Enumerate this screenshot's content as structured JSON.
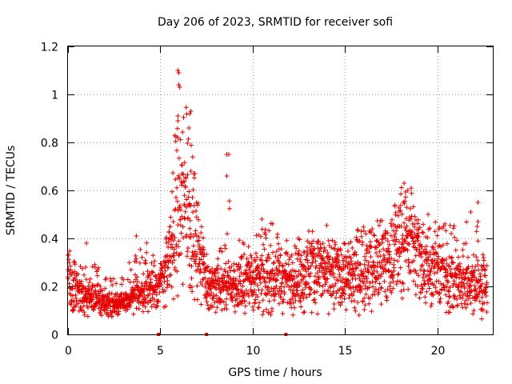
{
  "chart_data": {
    "type": "scatter",
    "title": "Day 206 of 2023, SRMTID for receiver sofi",
    "xlabel": "GPS time / hours",
    "ylabel": "SRMTID / TECUs",
    "xlim": [
      0,
      23.0
    ],
    "ylim": [
      0,
      1.2
    ],
    "x_ticks": [
      0,
      5,
      10,
      15,
      20
    ],
    "y_ticks": [
      0,
      0.2,
      0.4,
      0.6,
      0.8,
      1,
      1.2
    ],
    "x_tick_labels": [
      "0",
      "5",
      "10",
      "15",
      "20"
    ],
    "y_tick_labels": [
      "0",
      "0.2",
      "0.4",
      "0.6",
      "0.8",
      "1",
      "1.2"
    ],
    "grid": true,
    "marker": "+",
    "color": "#e60000",
    "gap_markers_x": [
      4.9,
      7.5,
      11.8
    ],
    "envelope": {
      "description": "approximate per-hour band (low, typical, high) in TECU",
      "hours": [
        0,
        1,
        2,
        3,
        4,
        5,
        5.5,
        6,
        6.5,
        7,
        7.5,
        8,
        8.5,
        9,
        10,
        11,
        12,
        13,
        14,
        15,
        16,
        17,
        17.5,
        18,
        18.5,
        19,
        20,
        21,
        22,
        22.7
      ],
      "low": [
        0.07,
        0.07,
        0.07,
        0.08,
        0.08,
        0.1,
        0.12,
        0.15,
        0.15,
        0.13,
        0.1,
        0.08,
        0.08,
        0.08,
        0.08,
        0.08,
        0.08,
        0.08,
        0.08,
        0.08,
        0.08,
        0.1,
        0.1,
        0.12,
        0.12,
        0.1,
        0.1,
        0.08,
        0.07,
        0.05
      ],
      "typical": [
        0.2,
        0.15,
        0.13,
        0.13,
        0.17,
        0.2,
        0.3,
        0.45,
        0.55,
        0.35,
        0.22,
        0.18,
        0.2,
        0.2,
        0.23,
        0.22,
        0.22,
        0.25,
        0.25,
        0.22,
        0.25,
        0.28,
        0.3,
        0.35,
        0.4,
        0.3,
        0.25,
        0.22,
        0.2,
        0.18
      ],
      "high": [
        0.38,
        0.32,
        0.26,
        0.25,
        0.41,
        0.3,
        0.5,
        1.1,
        0.92,
        0.6,
        0.3,
        0.3,
        0.75,
        0.42,
        0.4,
        0.48,
        0.38,
        0.44,
        0.4,
        0.38,
        0.46,
        0.48,
        0.5,
        0.62,
        0.6,
        0.5,
        0.48,
        0.45,
        0.55,
        0.25
      ]
    },
    "notable_points": [
      {
        "x": 5.95,
        "y": 1.1
      },
      {
        "x": 6.0,
        "y": 1.09
      },
      {
        "x": 6.0,
        "y": 1.04
      },
      {
        "x": 6.05,
        "y": 1.03
      },
      {
        "x": 5.95,
        "y": 0.91
      },
      {
        "x": 5.95,
        "y": 0.89
      },
      {
        "x": 6.6,
        "y": 0.92
      },
      {
        "x": 6.65,
        "y": 0.93
      },
      {
        "x": 6.55,
        "y": 0.86
      },
      {
        "x": 5.95,
        "y": 0.82
      },
      {
        "x": 8.6,
        "y": 0.75
      },
      {
        "x": 8.7,
        "y": 0.75
      },
      {
        "x": 8.6,
        "y": 0.66
      },
      {
        "x": 18.2,
        "y": 0.63
      },
      {
        "x": 18.4,
        "y": 0.6
      },
      {
        "x": 22.2,
        "y": 0.55
      },
      {
        "x": 3.7,
        "y": 0.41
      },
      {
        "x": 10.5,
        "y": 0.48
      },
      {
        "x": 19.5,
        "y": 0.5
      },
      {
        "x": 22.2,
        "y": 0.47
      },
      {
        "x": 0.0,
        "y": 0.33
      },
      {
        "x": 1.0,
        "y": 0.38
      }
    ]
  }
}
